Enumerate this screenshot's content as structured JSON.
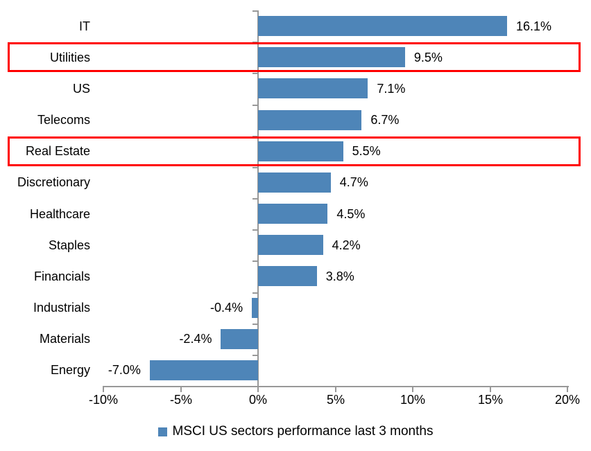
{
  "chart_data": {
    "type": "bar",
    "orientation": "horizontal",
    "title": "",
    "categories": [
      "IT",
      "Utilities",
      "US",
      "Telecoms",
      "Real Estate",
      "Discretionary",
      "Healthcare",
      "Staples",
      "Financials",
      "Industrials",
      "Materials",
      "Energy"
    ],
    "values": [
      16.1,
      9.5,
      7.1,
      6.7,
      5.5,
      4.7,
      4.5,
      4.2,
      3.8,
      -0.4,
      -2.4,
      -7.0
    ],
    "value_labels": [
      "16.1%",
      "9.5%",
      "7.1%",
      "6.7%",
      "5.5%",
      "4.7%",
      "4.5%",
      "4.2%",
      "3.8%",
      "-0.4%",
      "-2.4%",
      "-7.0%"
    ],
    "x_axis": {
      "min": -10,
      "max": 20,
      "ticks": [
        -10,
        -5,
        0,
        5,
        10,
        15,
        20
      ],
      "tick_labels": [
        "-10%",
        "-5%",
        "0%",
        "5%",
        "10%",
        "15%",
        "20%"
      ]
    },
    "highlighted_categories": [
      "Utilities",
      "Real Estate"
    ],
    "legend": {
      "label": "MSCI US sectors performance last 3 months",
      "position": "bottom"
    },
    "grid": false,
    "colors": {
      "bar": "#4E85B8",
      "highlight_border": "#FF0000",
      "axis": "#989898",
      "text": "#000000"
    }
  }
}
